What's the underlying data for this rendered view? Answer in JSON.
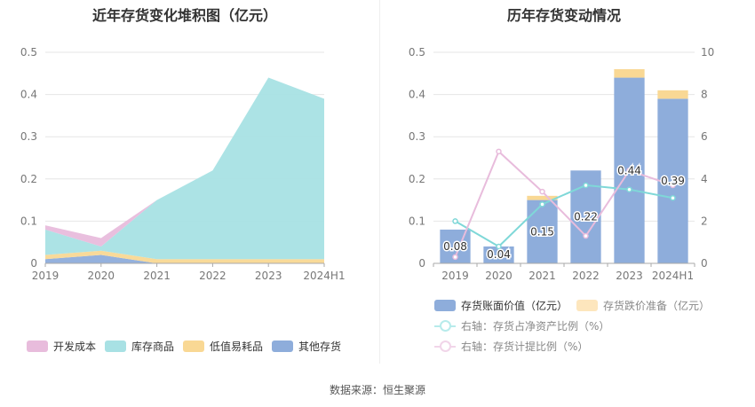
{
  "left_title": "近年存货变化堆积图（亿元）",
  "right_title": "历年存货变动情况",
  "footer": "数据来源：恒生聚源",
  "chart_data": [
    {
      "type": "area",
      "stacked": true,
      "title": "近年存货变化堆积图（亿元）",
      "categories": [
        "2019",
        "2020",
        "2021",
        "2022",
        "2023",
        "2024H1"
      ],
      "ylim": [
        0,
        0.5
      ],
      "yticks": [
        "0",
        "0.1",
        "0.2",
        "0.3",
        "0.4",
        "0.5"
      ],
      "grid": true,
      "legend_position": "bottom",
      "series": [
        {
          "name": "其他存货",
          "color": "#8eaddb",
          "values": [
            0.01,
            0.02,
            0.0,
            0.0,
            0.0,
            0.0
          ]
        },
        {
          "name": "低值易耗品",
          "color": "#f9d894",
          "values": [
            0.01,
            0.01,
            0.01,
            0.01,
            0.01,
            0.01
          ]
        },
        {
          "name": "库存商品",
          "color": "#a8e1e4",
          "values": [
            0.06,
            0.01,
            0.14,
            0.21,
            0.43,
            0.38
          ]
        },
        {
          "name": "开发成本",
          "color": "#e8bcdc",
          "values": [
            0.01,
            0.02,
            0.0,
            0.0,
            0.0,
            0.0
          ]
        }
      ],
      "legend_order": [
        "开发成本",
        "库存商品",
        "低值易耗品",
        "其他存货"
      ]
    },
    {
      "type": "bar",
      "stacked": true,
      "title": "历年存货变动情况",
      "categories": [
        "2019",
        "2020",
        "2021",
        "2022",
        "2023",
        "2024H1"
      ],
      "ylim": [
        0,
        0.5
      ],
      "yticks": [
        "0",
        "0.1",
        "0.2",
        "0.3",
        "0.4",
        "0.5"
      ],
      "y2lim": [
        0,
        10
      ],
      "y2ticks": [
        "0",
        "2",
        "4",
        "6",
        "8",
        "10"
      ],
      "grid": true,
      "legend_position": "bottom",
      "series": [
        {
          "name": "存货账面价值（亿元）",
          "color": "#8eaddb",
          "axis": "left",
          "values": [
            0.08,
            0.04,
            0.15,
            0.22,
            0.44,
            0.39
          ],
          "labels": [
            "0.08",
            "0.04",
            "0.15",
            "0.22",
            "0.44",
            "0.39"
          ]
        },
        {
          "name": "存货跌价准备（亿元）",
          "color": "#f9d894",
          "axis": "left",
          "values": [
            0.0,
            0.0,
            0.01,
            0.0,
            0.02,
            0.02
          ]
        },
        {
          "name": "右轴：存货占净资产比例（%）",
          "color": "#7fd8d8",
          "type": "line",
          "axis": "right",
          "values": [
            2.0,
            0.8,
            2.8,
            3.7,
            3.5,
            3.1
          ]
        },
        {
          "name": "右轴：存货计提比例（%）",
          "color": "#e8bcdc",
          "type": "line",
          "axis": "right",
          "values": [
            0.3,
            5.3,
            3.4,
            1.3,
            4.4,
            3.7
          ]
        }
      ]
    }
  ]
}
